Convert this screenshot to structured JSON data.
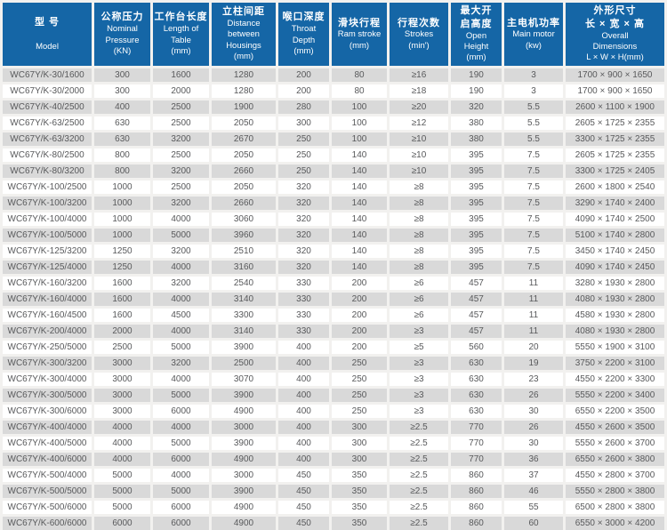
{
  "table": {
    "colors": {
      "header_bg": "#1566a6",
      "header_text": "#ffffff",
      "row_alt_bg": "#d9d9d9",
      "row_bg": "#ffffff",
      "cell_text": "#58595b"
    },
    "columns": [
      {
        "id": "model",
        "cn": [
          "型 号"
        ],
        "en": [
          "Model"
        ]
      },
      {
        "id": "press",
        "cn": [
          "公称压力"
        ],
        "en": [
          "Nominal",
          "Pressure",
          "(KN)"
        ]
      },
      {
        "id": "length",
        "cn": [
          "工作台长度"
        ],
        "en": [
          "Length of",
          "Table",
          "(mm)"
        ]
      },
      {
        "id": "housing",
        "cn": [
          "立柱间距"
        ],
        "en": [
          "Distance",
          "between",
          "Housings",
          "(mm)"
        ]
      },
      {
        "id": "throat",
        "cn": [
          "喉口深度"
        ],
        "en": [
          "Throat",
          "Depth",
          "(mm)"
        ]
      },
      {
        "id": "ram",
        "cn": [
          "滑块行程"
        ],
        "en": [
          "Ram stroke",
          "(mm)"
        ]
      },
      {
        "id": "strokes",
        "cn": [
          "行程次数"
        ],
        "en": [
          "Strokes",
          "(min')"
        ]
      },
      {
        "id": "open",
        "cn": [
          "最大开",
          "启高度"
        ],
        "en": [
          "Open",
          "Height",
          "(mm)"
        ]
      },
      {
        "id": "motor",
        "cn": [
          "主电机功率"
        ],
        "en": [
          "Main motor",
          "(kw)"
        ]
      },
      {
        "id": "dims",
        "cn": [
          "外形尺寸",
          "长 × 宽 × 高"
        ],
        "en": [
          "Overall",
          "Dimensions",
          "L × W × H(mm)"
        ]
      }
    ],
    "rows": [
      [
        "WC67Y/K-30/1600",
        "300",
        "1600",
        "1280",
        "200",
        "80",
        "≥16",
        "190",
        "3",
        "1700 × 900 × 1650"
      ],
      [
        "WC67Y/K-30/2000",
        "300",
        "2000",
        "1280",
        "200",
        "80",
        "≥18",
        "190",
        "3",
        "1700 × 900 × 1650"
      ],
      [
        "WC67Y/K-40/2500",
        "400",
        "2500",
        "1900",
        "280",
        "100",
        "≥20",
        "320",
        "5.5",
        "2600 × 1100 × 1900"
      ],
      [
        "WC67Y/K-63/2500",
        "630",
        "2500",
        "2050",
        "300",
        "100",
        "≥12",
        "380",
        "5.5",
        "2605 × 1725 × 2355"
      ],
      [
        "WC67Y/K-63/3200",
        "630",
        "3200",
        "2670",
        "250",
        "100",
        "≥10",
        "380",
        "5.5",
        "3300 × 1725 × 2355"
      ],
      [
        "WC67Y/K-80/2500",
        "800",
        "2500",
        "2050",
        "250",
        "140",
        "≥10",
        "395",
        "7.5",
        "2605 × 1725 × 2355"
      ],
      [
        "WC67Y/K-80/3200",
        "800",
        "3200",
        "2660",
        "250",
        "140",
        "≥10",
        "395",
        "7.5",
        "3300 × 1725 × 2405"
      ],
      [
        "WC67Y/K-100/2500",
        "1000",
        "2500",
        "2050",
        "320",
        "140",
        "≥8",
        "395",
        "7.5",
        "2600 × 1800 × 2540"
      ],
      [
        "WC67Y/K-100/3200",
        "1000",
        "3200",
        "2660",
        "320",
        "140",
        "≥8",
        "395",
        "7.5",
        "3290 × 1740 × 2400"
      ],
      [
        "WC67Y/K-100/4000",
        "1000",
        "4000",
        "3060",
        "320",
        "140",
        "≥8",
        "395",
        "7.5",
        "4090 × 1740 × 2500"
      ],
      [
        "WC67Y/K-100/5000",
        "1000",
        "5000",
        "3960",
        "320",
        "140",
        "≥8",
        "395",
        "7.5",
        "5100 × 1740 × 2800"
      ],
      [
        "WC67Y/K-125/3200",
        "1250",
        "3200",
        "2510",
        "320",
        "140",
        "≥8",
        "395",
        "7.5",
        "3450 × 1740 × 2450"
      ],
      [
        "WC67Y/K-125/4000",
        "1250",
        "4000",
        "3160",
        "320",
        "140",
        "≥8",
        "395",
        "7.5",
        "4090 × 1740 × 2450"
      ],
      [
        "WC67Y/K-160/3200",
        "1600",
        "3200",
        "2540",
        "330",
        "200",
        "≥6",
        "457",
        "11",
        "3280 × 1930 × 2800"
      ],
      [
        "WC67Y/K-160/4000",
        "1600",
        "4000",
        "3140",
        "330",
        "200",
        "≥6",
        "457",
        "11",
        "4080 × 1930 × 2800"
      ],
      [
        "WC67Y/K-160/4500",
        "1600",
        "4500",
        "3300",
        "330",
        "200",
        "≥6",
        "457",
        "11",
        "4580 × 1930 × 2800"
      ],
      [
        "WC67Y/K-200/4000",
        "2000",
        "4000",
        "3140",
        "330",
        "200",
        "≥3",
        "457",
        "11",
        "4080 × 1930 × 2800"
      ],
      [
        "WC67Y/K-250/5000",
        "2500",
        "5000",
        "3900",
        "400",
        "200",
        "≥5",
        "560",
        "20",
        "5550 × 1900 × 3100"
      ],
      [
        "WC67Y/K-300/3200",
        "3000",
        "3200",
        "2500",
        "400",
        "250",
        "≥3",
        "630",
        "19",
        "3750 × 2200 × 3100"
      ],
      [
        "WC67Y/K-300/4000",
        "3000",
        "4000",
        "3070",
        "400",
        "250",
        "≥3",
        "630",
        "23",
        "4550 × 2200 × 3300"
      ],
      [
        "WC67Y/K-300/5000",
        "3000",
        "5000",
        "3900",
        "400",
        "250",
        "≥3",
        "630",
        "26",
        "5550 × 2200 × 3400"
      ],
      [
        "WC67Y/K-300/6000",
        "3000",
        "6000",
        "4900",
        "400",
        "250",
        "≥3",
        "630",
        "30",
        "6550 × 2200 × 3500"
      ],
      [
        "WC67Y/K-400/4000",
        "4000",
        "4000",
        "3000",
        "400",
        "300",
        "≥2.5",
        "770",
        "26",
        "4550 × 2600 × 3500"
      ],
      [
        "WC67Y/K-400/5000",
        "4000",
        "5000",
        "3900",
        "400",
        "300",
        "≥2.5",
        "770",
        "30",
        "5550 × 2600 × 3700"
      ],
      [
        "WC67Y/K-400/6000",
        "4000",
        "6000",
        "4900",
        "400",
        "300",
        "≥2.5",
        "770",
        "36",
        "6550 × 2600 × 3800"
      ],
      [
        "WC67Y/K-500/4000",
        "5000",
        "4000",
        "3000",
        "450",
        "350",
        "≥2.5",
        "860",
        "37",
        "4550 × 2800 × 3700"
      ],
      [
        "WC67Y/K-500/5000",
        "5000",
        "5000",
        "3900",
        "450",
        "350",
        "≥2.5",
        "860",
        "46",
        "5550 × 2800 × 3800"
      ],
      [
        "WC67Y/K-500/6000",
        "5000",
        "6000",
        "4900",
        "450",
        "350",
        "≥2.5",
        "860",
        "55",
        "6500 × 2800 × 3800"
      ],
      [
        "WC67Y/K-600/6000",
        "6000",
        "6000",
        "4900",
        "450",
        "350",
        "≥2.5",
        "860",
        "60",
        "6550 × 3000 × 4200"
      ]
    ]
  }
}
